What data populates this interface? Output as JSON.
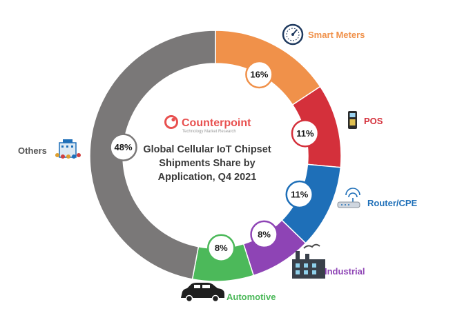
{
  "chart_data": {
    "type": "donut",
    "title_lines": [
      "Global Cellular IoT Chipset",
      "Shipments Share by",
      "Application, Q4 2021"
    ],
    "brand": {
      "name": "Counterpoint",
      "tagline": "Technology Market Research"
    },
    "categories": [
      "Smart Meters",
      "POS",
      "Router/CPE",
      "Industrial",
      "Automotive",
      "Others"
    ],
    "values": [
      16,
      11,
      11,
      8,
      8,
      48
    ],
    "data_labels": [
      "16%",
      "11%",
      "11%",
      "8%",
      "8%",
      "48%"
    ],
    "unit": "%"
  },
  "colors": {
    "Smart Meters": "#F0914A",
    "POS": "#D4303B",
    "Router/CPE": "#1E6FB8",
    "Industrial": "#8E44B5",
    "Automotive": "#4CB95A",
    "Others": "#7A7878",
    "brand": "#E8504F"
  },
  "icons": {
    "Smart Meters": "gauge-icon",
    "POS": "pos-terminal-icon",
    "Router/CPE": "router-icon",
    "Industrial": "factory-icon",
    "Automotive": "car-icon",
    "Others": "building-icon"
  }
}
